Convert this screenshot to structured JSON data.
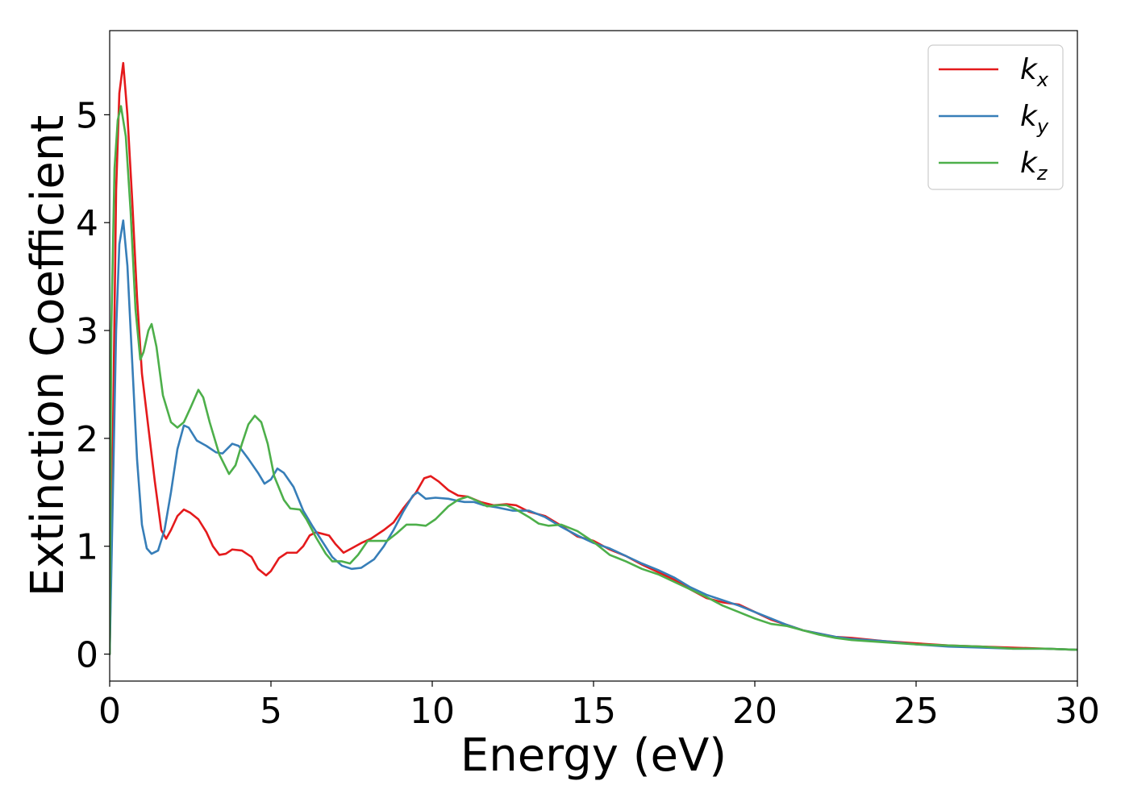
{
  "chart_data": {
    "type": "line",
    "title": "",
    "xlabel": "Energy (eV)",
    "ylabel": "Extinction Coefficient",
    "xlim": [
      0,
      30
    ],
    "ylim": [
      -0.25,
      5.78
    ],
    "xticks": [
      0,
      5,
      10,
      15,
      20,
      25,
      30
    ],
    "yticks": [
      0,
      1,
      2,
      3,
      4,
      5
    ],
    "grid": false,
    "legend_position": "top-right",
    "series": [
      {
        "name": "k_x",
        "label_main": "k",
        "label_sub": "x",
        "color": "#e41a1c",
        "points": [
          [
            0,
            0
          ],
          [
            0.1,
            2.0
          ],
          [
            0.2,
            4.3
          ],
          [
            0.3,
            5.2
          ],
          [
            0.42,
            5.48
          ],
          [
            0.55,
            5.0
          ],
          [
            0.7,
            4.2
          ],
          [
            0.85,
            3.3
          ],
          [
            1.0,
            2.6
          ],
          [
            1.2,
            2.1
          ],
          [
            1.4,
            1.6
          ],
          [
            1.6,
            1.15
          ],
          [
            1.75,
            1.07
          ],
          [
            1.9,
            1.15
          ],
          [
            2.1,
            1.28
          ],
          [
            2.3,
            1.34
          ],
          [
            2.5,
            1.31
          ],
          [
            2.75,
            1.25
          ],
          [
            3.0,
            1.13
          ],
          [
            3.2,
            1.0
          ],
          [
            3.4,
            0.92
          ],
          [
            3.6,
            0.93
          ],
          [
            3.8,
            0.97
          ],
          [
            4.1,
            0.96
          ],
          [
            4.4,
            0.9
          ],
          [
            4.6,
            0.79
          ],
          [
            4.85,
            0.73
          ],
          [
            5.0,
            0.77
          ],
          [
            5.25,
            0.89
          ],
          [
            5.5,
            0.94
          ],
          [
            5.8,
            0.94
          ],
          [
            6.0,
            1.0
          ],
          [
            6.2,
            1.1
          ],
          [
            6.4,
            1.13
          ],
          [
            6.8,
            1.1
          ],
          [
            7.0,
            1.02
          ],
          [
            7.25,
            0.94
          ],
          [
            7.5,
            0.98
          ],
          [
            7.8,
            1.03
          ],
          [
            8.1,
            1.07
          ],
          [
            8.5,
            1.15
          ],
          [
            8.8,
            1.22
          ],
          [
            9.1,
            1.35
          ],
          [
            9.5,
            1.5
          ],
          [
            9.75,
            1.63
          ],
          [
            9.95,
            1.65
          ],
          [
            10.2,
            1.6
          ],
          [
            10.5,
            1.52
          ],
          [
            10.8,
            1.47
          ],
          [
            11.1,
            1.46
          ],
          [
            11.5,
            1.41
          ],
          [
            11.9,
            1.38
          ],
          [
            12.3,
            1.39
          ],
          [
            12.6,
            1.38
          ],
          [
            13.0,
            1.32
          ],
          [
            13.5,
            1.28
          ],
          [
            14.0,
            1.19
          ],
          [
            14.5,
            1.09
          ],
          [
            15.0,
            1.05
          ],
          [
            15.5,
            0.97
          ],
          [
            16.0,
            0.91
          ],
          [
            16.5,
            0.83
          ],
          [
            17.0,
            0.76
          ],
          [
            17.5,
            0.69
          ],
          [
            18.0,
            0.6
          ],
          [
            18.5,
            0.52
          ],
          [
            19.0,
            0.48
          ],
          [
            19.5,
            0.46
          ],
          [
            20.0,
            0.39
          ],
          [
            20.5,
            0.32
          ],
          [
            21.0,
            0.27
          ],
          [
            21.5,
            0.22
          ],
          [
            22.0,
            0.19
          ],
          [
            22.5,
            0.16
          ],
          [
            23.0,
            0.15
          ],
          [
            24.0,
            0.12
          ],
          [
            25.0,
            0.1
          ],
          [
            26.0,
            0.08
          ],
          [
            27.0,
            0.07
          ],
          [
            28.0,
            0.06
          ],
          [
            29.0,
            0.05
          ],
          [
            30.0,
            0.04
          ]
        ]
      },
      {
        "name": "k_y",
        "label_main": "k",
        "label_sub": "y",
        "color": "#377eb8",
        "points": [
          [
            0,
            0
          ],
          [
            0.1,
            1.5
          ],
          [
            0.2,
            3.0
          ],
          [
            0.3,
            3.8
          ],
          [
            0.42,
            4.02
          ],
          [
            0.55,
            3.6
          ],
          [
            0.7,
            2.7
          ],
          [
            0.85,
            1.8
          ],
          [
            1.0,
            1.2
          ],
          [
            1.15,
            0.98
          ],
          [
            1.3,
            0.93
          ],
          [
            1.5,
            0.96
          ],
          [
            1.7,
            1.15
          ],
          [
            1.9,
            1.5
          ],
          [
            2.1,
            1.9
          ],
          [
            2.3,
            2.12
          ],
          [
            2.45,
            2.1
          ],
          [
            2.7,
            1.98
          ],
          [
            3.0,
            1.93
          ],
          [
            3.3,
            1.87
          ],
          [
            3.5,
            1.86
          ],
          [
            3.8,
            1.95
          ],
          [
            4.0,
            1.93
          ],
          [
            4.3,
            1.81
          ],
          [
            4.6,
            1.68
          ],
          [
            4.8,
            1.58
          ],
          [
            5.0,
            1.62
          ],
          [
            5.2,
            1.72
          ],
          [
            5.4,
            1.68
          ],
          [
            5.7,
            1.55
          ],
          [
            6.0,
            1.33
          ],
          [
            6.3,
            1.18
          ],
          [
            6.6,
            1.04
          ],
          [
            6.9,
            0.9
          ],
          [
            7.2,
            0.82
          ],
          [
            7.5,
            0.79
          ],
          [
            7.8,
            0.8
          ],
          [
            8.2,
            0.88
          ],
          [
            8.5,
            1.0
          ],
          [
            8.8,
            1.15
          ],
          [
            9.1,
            1.32
          ],
          [
            9.4,
            1.47
          ],
          [
            9.55,
            1.5
          ],
          [
            9.8,
            1.44
          ],
          [
            10.1,
            1.45
          ],
          [
            10.5,
            1.44
          ],
          [
            10.8,
            1.42
          ],
          [
            11.0,
            1.41
          ],
          [
            11.3,
            1.41
          ],
          [
            11.6,
            1.38
          ],
          [
            12.0,
            1.36
          ],
          [
            12.5,
            1.33
          ],
          [
            13.0,
            1.33
          ],
          [
            13.5,
            1.27
          ],
          [
            14.0,
            1.18
          ],
          [
            14.5,
            1.1
          ],
          [
            15.0,
            1.03
          ],
          [
            15.5,
            0.98
          ],
          [
            16.0,
            0.91
          ],
          [
            16.5,
            0.84
          ],
          [
            17.0,
            0.78
          ],
          [
            17.5,
            0.71
          ],
          [
            18.0,
            0.62
          ],
          [
            18.5,
            0.55
          ],
          [
            19.0,
            0.5
          ],
          [
            19.5,
            0.45
          ],
          [
            20.0,
            0.39
          ],
          [
            20.5,
            0.33
          ],
          [
            21.0,
            0.27
          ],
          [
            21.5,
            0.22
          ],
          [
            22.0,
            0.19
          ],
          [
            22.5,
            0.16
          ],
          [
            23.0,
            0.14
          ],
          [
            24.0,
            0.12
          ],
          [
            25.0,
            0.09
          ],
          [
            26.0,
            0.07
          ],
          [
            27.0,
            0.06
          ],
          [
            28.0,
            0.05
          ],
          [
            29.0,
            0.05
          ],
          [
            30.0,
            0.04
          ]
        ]
      },
      {
        "name": "k_z",
        "label_main": "k",
        "label_sub": "z",
        "color": "#4daf4a",
        "points": [
          [
            0,
            0
          ],
          [
            0.05,
            3.0
          ],
          [
            0.15,
            4.5
          ],
          [
            0.25,
            4.95
          ],
          [
            0.35,
            5.08
          ],
          [
            0.5,
            4.8
          ],
          [
            0.65,
            4.1
          ],
          [
            0.8,
            3.2
          ],
          [
            0.95,
            2.73
          ],
          [
            1.05,
            2.8
          ],
          [
            1.2,
            3.0
          ],
          [
            1.3,
            3.06
          ],
          [
            1.45,
            2.85
          ],
          [
            1.65,
            2.4
          ],
          [
            1.9,
            2.15
          ],
          [
            2.1,
            2.1
          ],
          [
            2.3,
            2.15
          ],
          [
            2.5,
            2.28
          ],
          [
            2.75,
            2.45
          ],
          [
            2.9,
            2.38
          ],
          [
            3.1,
            2.15
          ],
          [
            3.4,
            1.85
          ],
          [
            3.7,
            1.67
          ],
          [
            3.9,
            1.75
          ],
          [
            4.1,
            1.95
          ],
          [
            4.3,
            2.13
          ],
          [
            4.5,
            2.21
          ],
          [
            4.7,
            2.15
          ],
          [
            4.9,
            1.95
          ],
          [
            5.1,
            1.65
          ],
          [
            5.4,
            1.43
          ],
          [
            5.6,
            1.35
          ],
          [
            5.9,
            1.34
          ],
          [
            6.1,
            1.25
          ],
          [
            6.4,
            1.08
          ],
          [
            6.7,
            0.93
          ],
          [
            6.9,
            0.86
          ],
          [
            7.2,
            0.86
          ],
          [
            7.45,
            0.84
          ],
          [
            7.7,
            0.92
          ],
          [
            8.0,
            1.05
          ],
          [
            8.3,
            1.05
          ],
          [
            8.6,
            1.05
          ],
          [
            8.9,
            1.12
          ],
          [
            9.2,
            1.2
          ],
          [
            9.5,
            1.2
          ],
          [
            9.8,
            1.19
          ],
          [
            10.1,
            1.25
          ],
          [
            10.5,
            1.37
          ],
          [
            10.8,
            1.43
          ],
          [
            11.1,
            1.46
          ],
          [
            11.4,
            1.42
          ],
          [
            11.7,
            1.37
          ],
          [
            12.0,
            1.38
          ],
          [
            12.3,
            1.38
          ],
          [
            12.6,
            1.34
          ],
          [
            13.0,
            1.27
          ],
          [
            13.3,
            1.21
          ],
          [
            13.6,
            1.19
          ],
          [
            14.0,
            1.2
          ],
          [
            14.5,
            1.14
          ],
          [
            15.0,
            1.04
          ],
          [
            15.5,
            0.92
          ],
          [
            16.0,
            0.86
          ],
          [
            16.5,
            0.79
          ],
          [
            17.0,
            0.74
          ],
          [
            17.5,
            0.67
          ],
          [
            18.0,
            0.6
          ],
          [
            18.5,
            0.53
          ],
          [
            19.0,
            0.45
          ],
          [
            19.5,
            0.39
          ],
          [
            20.0,
            0.33
          ],
          [
            20.5,
            0.28
          ],
          [
            21.0,
            0.26
          ],
          [
            21.5,
            0.22
          ],
          [
            22.0,
            0.18
          ],
          [
            22.5,
            0.15
          ],
          [
            23.0,
            0.13
          ],
          [
            24.0,
            0.11
          ],
          [
            25.0,
            0.09
          ],
          [
            26.0,
            0.08
          ],
          [
            27.0,
            0.07
          ],
          [
            28.0,
            0.05
          ],
          [
            29.0,
            0.05
          ],
          [
            30.0,
            0.04
          ]
        ]
      }
    ]
  }
}
